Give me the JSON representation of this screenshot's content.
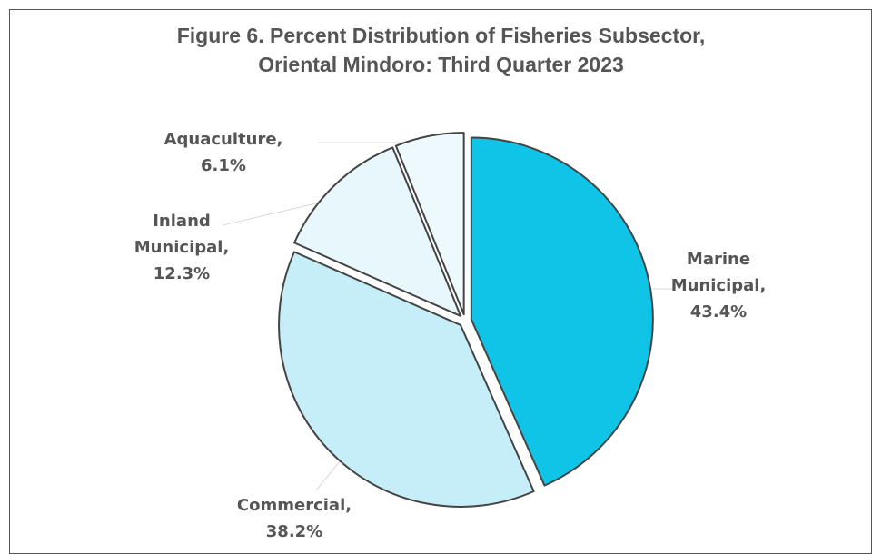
{
  "chart_data": {
    "type": "pie",
    "title_lines": [
      "Figure 6. Percent Distribution of Fisheries Subsector,",
      "Oriental Mindoro: Third Quarter 2023"
    ],
    "slices": [
      {
        "label_lines": [
          "Marine",
          "Municipal,",
          "43.4%"
        ],
        "value": 43.4,
        "color": "#10C4E8"
      },
      {
        "label_lines": [
          "Commercial,",
          "38.2%"
        ],
        "value": 38.2,
        "color": "#C6EEF8"
      },
      {
        "label_lines": [
          "Inland",
          "Municipal,",
          "12.3%"
        ],
        "value": 12.3,
        "color": "#E7F7FC"
      },
      {
        "label_lines": [
          "Aquaculture,",
          "6.1%"
        ],
        "value": 6.1,
        "color": "#EDF9FC"
      }
    ],
    "start_angle_deg": 0,
    "direction": "clockwise",
    "exploded": true,
    "legend": "none"
  }
}
